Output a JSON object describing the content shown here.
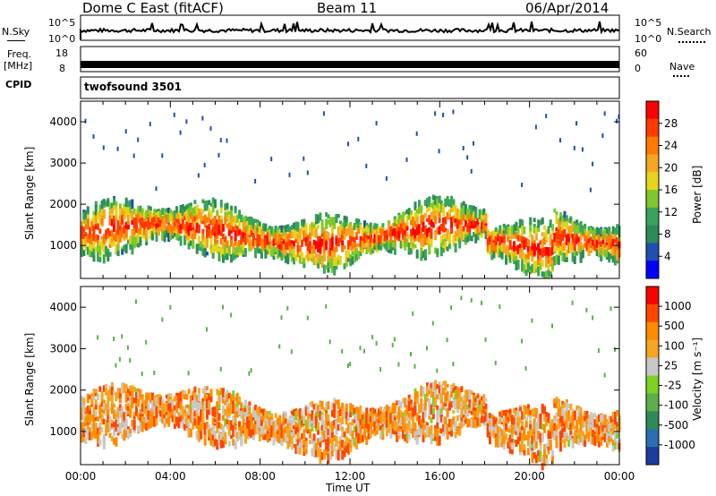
{
  "header": {
    "site": "Dome C East (fitACF)",
    "beam": "Beam 11",
    "date": "06/Apr/2014"
  },
  "strip_labels": {
    "nsky": "N.Sky",
    "nsky_ticks": [
      "10^5",
      "10^0"
    ],
    "nsearch": "N.Search",
    "nsearch_ticks": [
      "10^5",
      "10^0"
    ],
    "freq": "Freq.",
    "freq_unit": "[MHz]",
    "freq_ticks": [
      "18",
      "8"
    ],
    "nave": "Nave",
    "nave_ticks": [
      "60",
      "0"
    ],
    "cpid": "CPID",
    "cpid_value": "twofsound 3501"
  },
  "chart_data": [
    {
      "type": "heatmap",
      "name": "power",
      "ylabel": "Slant Range [km]",
      "xlabel": "Time UT",
      "x_ticks": [
        "00:00",
        "04:00",
        "08:00",
        "12:00",
        "16:00",
        "20:00",
        "00:00"
      ],
      "y_ticks": [
        1000,
        2000,
        3000,
        4000
      ],
      "ylim": [
        200,
        4500
      ],
      "xlim_hours": [
        0,
        24
      ],
      "colorbar": {
        "label": "Power [dB]",
        "ticks": [
          4,
          8,
          12,
          16,
          20,
          24,
          28
        ],
        "range": [
          0,
          32
        ],
        "colors": [
          "#0000ff",
          "#1f4fb0",
          "#2e8b57",
          "#3aa35a",
          "#7ec82e",
          "#e8d41a",
          "#f5a623",
          "#ff7a00",
          "#ff3a00",
          "#ff0000"
        ]
      }
    },
    {
      "type": "heatmap",
      "name": "velocity",
      "ylabel": "Slant Range [km]",
      "xlabel": "Time UT",
      "x_ticks": [
        "00:00",
        "04:00",
        "08:00",
        "12:00",
        "16:00",
        "20:00",
        "00:00"
      ],
      "y_ticks": [
        1000,
        2000,
        3000,
        4000
      ],
      "ylim": [
        200,
        4500
      ],
      "xlim_hours": [
        0,
        24
      ],
      "colorbar": {
        "label": "Velocity [m s⁻¹]",
        "ticks": [
          "1000",
          "500",
          "100",
          "25",
          "-25",
          "-100",
          "-500",
          "-1000"
        ],
        "colors": [
          "#1e3c9e",
          "#2b6fb0",
          "#2e8b57",
          "#5bb04a",
          "#7ed321",
          "#c8c8c8",
          "#f5a623",
          "#ff8c00",
          "#ff4500",
          "#ff0000"
        ]
      }
    }
  ],
  "xaxis_title": "Time UT"
}
